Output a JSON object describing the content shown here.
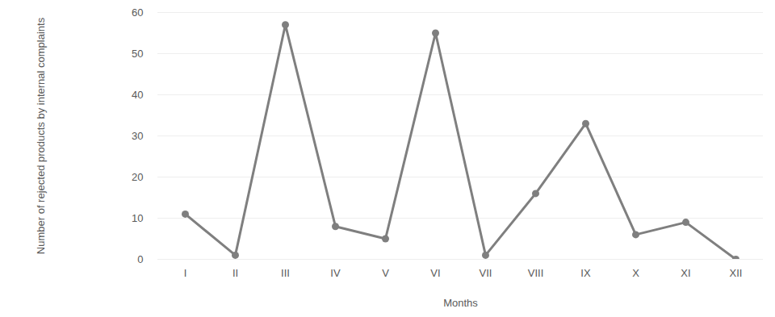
{
  "chart_data": {
    "type": "line",
    "x_label": "Months",
    "y_label": "Number of rejected products by internal complaints",
    "categories": [
      "I",
      "II",
      "III",
      "IV",
      "V",
      "VI",
      "VII",
      "VIII",
      "IX",
      "X",
      "XI",
      "XII"
    ],
    "values": [
      11,
      1,
      57,
      8,
      5,
      55,
      1,
      16,
      33,
      6,
      9,
      0
    ],
    "color": "#7f7f7f",
    "marker": "circle",
    "ylim": [
      0,
      60
    ],
    "yticks": [
      0,
      10,
      20,
      30,
      40,
      50,
      60
    ],
    "grid": true
  }
}
